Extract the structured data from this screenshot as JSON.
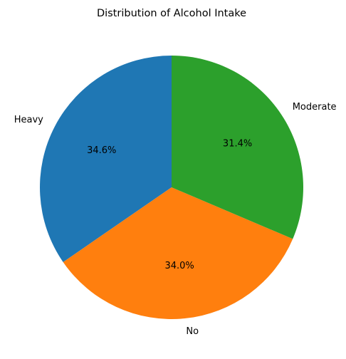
{
  "chart_data": {
    "type": "pie",
    "title": "Distribution of Alcohol Intake",
    "start_angle_deg": 90,
    "direction": "counterclockwise",
    "slices": [
      {
        "label": "Heavy",
        "value": 34.6,
        "pct_label": "34.6%",
        "color": "#1f77b4"
      },
      {
        "label": "No",
        "value": 34.0,
        "pct_label": "34.0%",
        "color": "#ff7f0e"
      },
      {
        "label": "Moderate",
        "value": 31.4,
        "pct_label": "31.4%",
        "color": "#2ca02c"
      }
    ]
  }
}
